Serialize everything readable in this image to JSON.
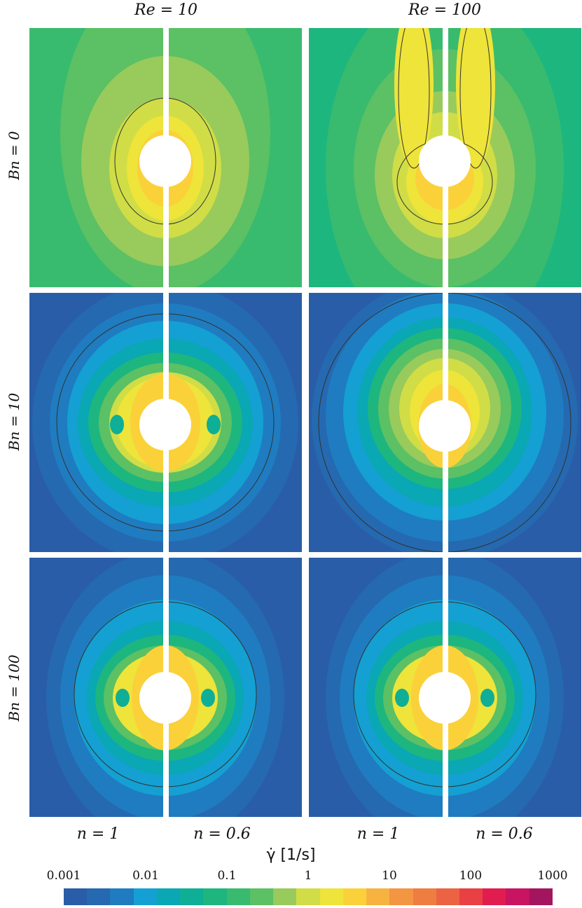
{
  "columns": [
    {
      "label": "Re = 10"
    },
    {
      "label": "Re = 100"
    }
  ],
  "rows": [
    {
      "label": "Bn = 0"
    },
    {
      "label": "Bn = 10"
    },
    {
      "label": "Bn = 100"
    }
  ],
  "half_labels": [
    "n = 1",
    "n = 0.6",
    "n = 1",
    "n = 0.6"
  ],
  "colorbar": {
    "title": "γ̇ [1/s]",
    "ticks": [
      "0.001",
      "0.01",
      "0.1",
      "1",
      "10",
      "100",
      "1000"
    ],
    "colors": [
      "#2a5da8",
      "#2569b0",
      "#1f7cc0",
      "#14a0d2",
      "#0aa7b4",
      "#0fae96",
      "#1db67f",
      "#38bb6e",
      "#5cc065",
      "#98cb5b",
      "#d0dd46",
      "#eee43a",
      "#fbd13a",
      "#f7b340",
      "#f29642",
      "#ee7d42",
      "#ec6343",
      "#e94044",
      "#e11d50",
      "#c81461",
      "#a3155f"
    ]
  }
}
